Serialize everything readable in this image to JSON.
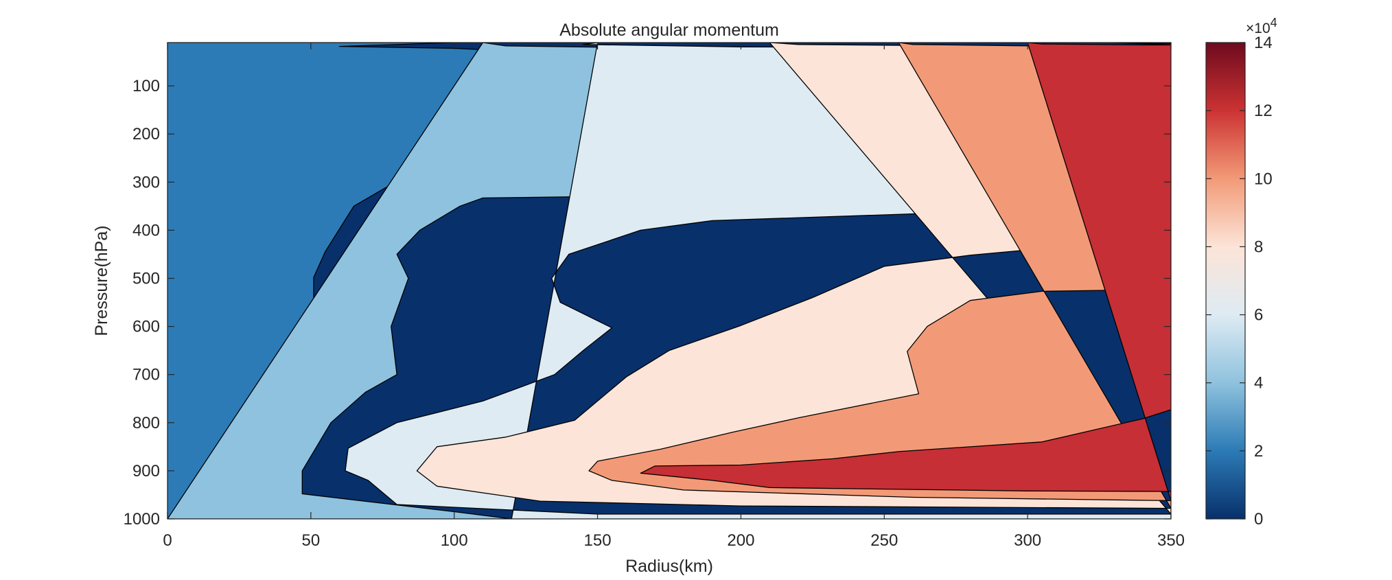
{
  "chart_data": {
    "type": "contourf",
    "title": "Absolute angular momentum",
    "xlabel": "Radius(km)",
    "ylabel": "Pressure(hPa)",
    "xlim": [
      0,
      350
    ],
    "ylim": [
      10,
      1000
    ],
    "y_reversed": true,
    "x_ticks": [
      "0",
      "50",
      "100",
      "150",
      "200",
      "250",
      "300",
      "350"
    ],
    "y_ticks": [
      "100",
      "200",
      "300",
      "400",
      "500",
      "600",
      "700",
      "800",
      "900",
      "1000"
    ],
    "colorbar": {
      "ticks": [
        "0",
        "2",
        "4",
        "6",
        "8",
        "10",
        "12",
        "14"
      ],
      "range": [
        0,
        14
      ],
      "exponent_label": "×10",
      "exponent_power": "4",
      "colors": [
        "#08306b",
        "#2c7bb6",
        "#8fc2de",
        "#deebf3",
        "#fce4d8",
        "#f29a77",
        "#cc3333",
        "#6e0a1e"
      ]
    },
    "contour_levels": [
      20000,
      40000,
      60000,
      80000,
      100000,
      120000,
      140000
    ],
    "fill_colors": [
      "#08306b",
      "#2c7bb6",
      "#8fc2de",
      "#deebf3",
      "#fce4d8",
      "#f29a77",
      "#c52f35",
      "#7a0d21"
    ],
    "contours": [
      {
        "level": 20000,
        "points": [
          [
            0,
            10
          ],
          [
            100,
            10
          ],
          [
            60,
            18
          ],
          [
            100,
            22
          ],
          [
            120,
            28
          ],
          [
            230,
            28
          ],
          [
            350,
            34
          ],
          [
            350,
            102
          ],
          [
            300,
            116
          ],
          [
            210,
            136
          ],
          [
            130,
            145
          ],
          [
            115,
            180
          ],
          [
            90,
            250
          ],
          [
            80,
            298
          ],
          [
            65,
            350
          ],
          [
            55,
            445
          ],
          [
            51,
            498
          ],
          [
            51,
            550
          ],
          [
            45,
            650
          ],
          [
            42,
            750
          ],
          [
            38,
            900
          ],
          [
            37,
            948
          ],
          [
            50,
            1000
          ],
          [
            0,
            1000
          ]
        ]
      },
      {
        "level": 40000,
        "points": [
          [
            110,
            10
          ],
          [
            118,
            17
          ],
          [
            180,
            22
          ],
          [
            285,
            24
          ],
          [
            350,
            26
          ],
          [
            350,
            120
          ],
          [
            298,
            130
          ],
          [
            315,
            160
          ],
          [
            350,
            192
          ],
          [
            350,
            220
          ],
          [
            337,
            250
          ],
          [
            323,
            300
          ],
          [
            300,
            289
          ],
          [
            240,
            290
          ],
          [
            190,
            308
          ],
          [
            150,
            330
          ],
          [
            110,
            333
          ],
          [
            102,
            350
          ],
          [
            88,
            400
          ],
          [
            80,
            450
          ],
          [
            84,
            500
          ],
          [
            78,
            600
          ],
          [
            80,
            700
          ],
          [
            69,
            737
          ],
          [
            57,
            800
          ],
          [
            47,
            900
          ],
          [
            47,
            948
          ],
          [
            100,
            985
          ],
          [
            120,
            1000
          ],
          [
            0,
            1000
          ]
        ]
      },
      {
        "level": 60000,
        "points": [
          [
            150,
            10
          ],
          [
            145,
            14
          ],
          [
            200,
            19
          ],
          [
            250,
            20
          ],
          [
            300,
            22
          ],
          [
            350,
            22
          ],
          [
            350,
            370
          ],
          [
            270,
            364
          ],
          [
            190,
            380
          ],
          [
            165,
            400
          ],
          [
            140,
            450
          ],
          [
            134,
            500
          ],
          [
            137,
            550
          ],
          [
            155,
            603
          ],
          [
            145,
            650
          ],
          [
            135,
            700
          ],
          [
            110,
            755
          ],
          [
            80,
            800
          ],
          [
            63,
            853
          ],
          [
            62,
            900
          ],
          [
            70,
            920
          ],
          [
            80,
            970
          ],
          [
            150,
            990
          ],
          [
            350,
            990
          ],
          [
            350,
            1000
          ],
          [
            120,
            1000
          ]
        ]
      },
      {
        "level": 80000,
        "points": [
          [
            210,
            10
          ],
          [
            220,
            14
          ],
          [
            260,
            16
          ],
          [
            350,
            20
          ],
          [
            350,
            447
          ],
          [
            300,
            441
          ],
          [
            280,
            452
          ],
          [
            250,
            475
          ],
          [
            225,
            540
          ],
          [
            200,
            598
          ],
          [
            175,
            650
          ],
          [
            160,
            705
          ],
          [
            142,
            795
          ],
          [
            118,
            830
          ],
          [
            94,
            850
          ],
          [
            87,
            900
          ],
          [
            94,
            932
          ],
          [
            130,
            963
          ],
          [
            200,
            973
          ],
          [
            350,
            978
          ],
          [
            350,
            990
          ]
        ]
      },
      {
        "level": 100000,
        "points": [
          [
            255,
            10
          ],
          [
            260,
            14
          ],
          [
            300,
            17
          ],
          [
            350,
            19
          ],
          [
            350,
            523
          ],
          [
            305,
            527
          ],
          [
            280,
            546
          ],
          [
            265,
            600
          ],
          [
            258,
            652
          ],
          [
            262,
            740
          ],
          [
            220,
            790
          ],
          [
            197,
            820
          ],
          [
            172,
            855
          ],
          [
            150,
            880
          ],
          [
            147,
            900
          ],
          [
            155,
            920
          ],
          [
            180,
            940
          ],
          [
            260,
            955
          ],
          [
            350,
            962
          ],
          [
            350,
            978
          ]
        ]
      },
      {
        "level": 120000,
        "points": [
          [
            300,
            10
          ],
          [
            305,
            13
          ],
          [
            340,
            15
          ],
          [
            350,
            15
          ],
          [
            350,
            773
          ],
          [
            340,
            792
          ],
          [
            305,
            840
          ],
          [
            255,
            860
          ],
          [
            232,
            875
          ],
          [
            200,
            888
          ],
          [
            170,
            890
          ],
          [
            165,
            905
          ],
          [
            190,
            920
          ],
          [
            210,
            935
          ],
          [
            300,
            942
          ],
          [
            350,
            943
          ],
          [
            350,
            962
          ]
        ]
      },
      {
        "level": 140000,
        "points": [
          [
            330,
            10
          ],
          [
            345,
            12
          ],
          [
            350,
            12
          ],
          [
            350,
            15
          ]
        ]
      }
    ]
  }
}
